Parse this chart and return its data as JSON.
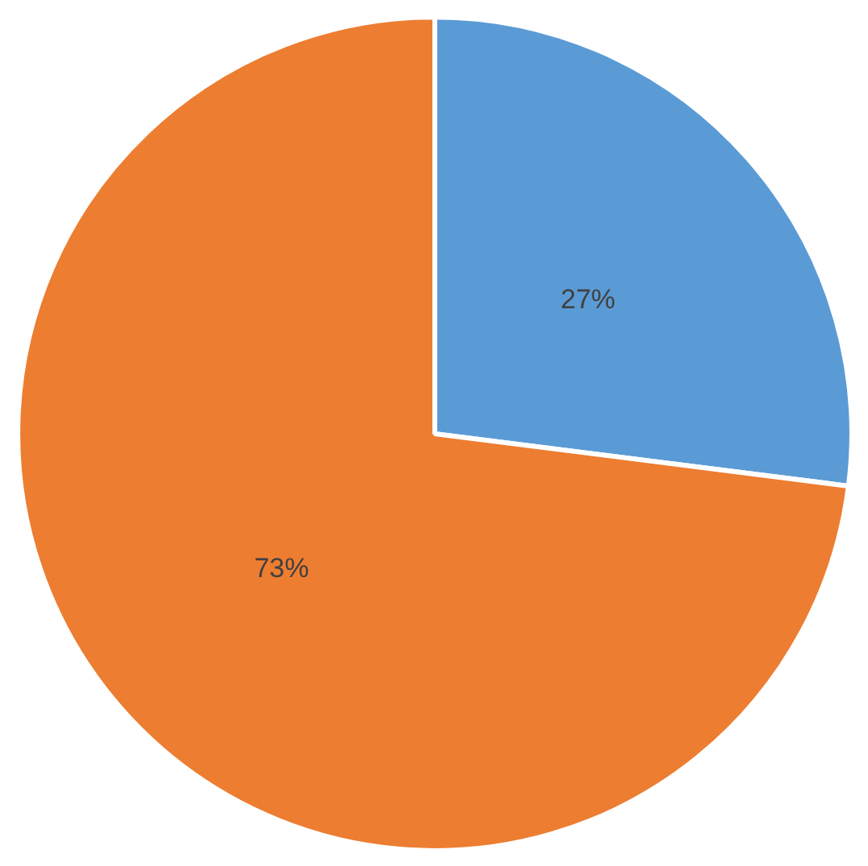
{
  "chart_data": {
    "type": "pie",
    "categories": [
      null,
      null
    ],
    "values": [
      27,
      73
    ],
    "colors": [
      "#5b9bd5",
      "#ed7d31"
    ],
    "value_labels": [
      "27%",
      "73%"
    ]
  }
}
